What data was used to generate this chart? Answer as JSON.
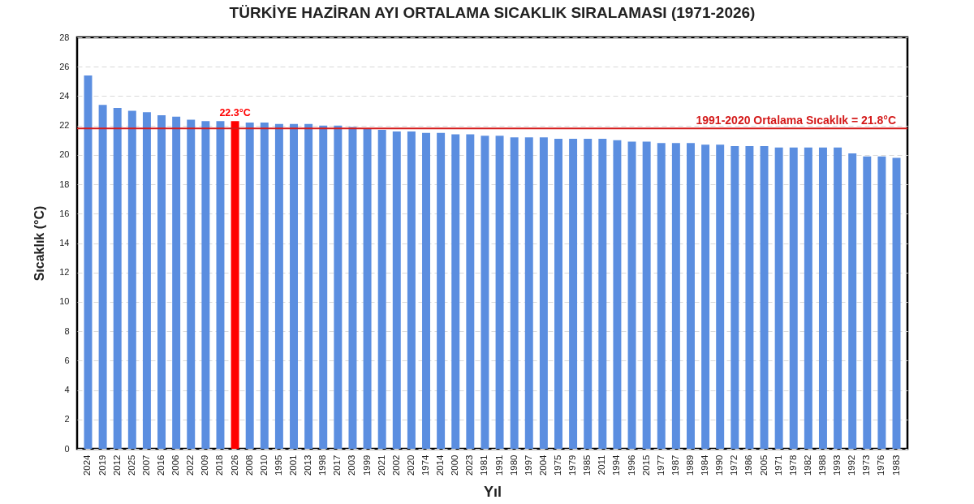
{
  "chart_data": {
    "type": "bar",
    "title": "TÜRKİYE HAZİRAN AYI ORTALAMA SICAKLIK SIRALAMASI (1971-2026)",
    "xlabel": "Yıl",
    "ylabel": "Sıcaklık (°C)",
    "categories": [
      "2024",
      "2019",
      "2012",
      "2025",
      "2007",
      "2016",
      "2006",
      "2022",
      "2009",
      "2018",
      "2026",
      "2008",
      "2010",
      "1995",
      "2001",
      "2013",
      "1998",
      "2017",
      "2003",
      "1999",
      "2021",
      "2002",
      "2020",
      "1974",
      "2014",
      "2000",
      "2023",
      "1981",
      "1991",
      "1980",
      "1997",
      "2004",
      "1975",
      "1979",
      "1985",
      "2011",
      "1994",
      "1996",
      "2015",
      "1977",
      "1987",
      "1989",
      "1984",
      "1990",
      "1972",
      "1986",
      "2005",
      "1971",
      "1978",
      "1982",
      "1988",
      "1993",
      "1992",
      "1973",
      "1976",
      "1983"
    ],
    "values": [
      25.4,
      23.4,
      23.2,
      23.0,
      22.9,
      22.7,
      22.6,
      22.4,
      22.3,
      22.3,
      22.3,
      22.2,
      22.2,
      22.1,
      22.1,
      22.1,
      22.0,
      22.0,
      21.9,
      21.8,
      21.7,
      21.6,
      21.6,
      21.5,
      21.5,
      21.4,
      21.4,
      21.3,
      21.3,
      21.2,
      21.2,
      21.2,
      21.1,
      21.1,
      21.1,
      21.1,
      21.0,
      20.9,
      20.9,
      20.8,
      20.8,
      20.8,
      20.7,
      20.7,
      20.6,
      20.6,
      20.6,
      20.5,
      20.5,
      20.5,
      20.5,
      20.5,
      20.1,
      19.9,
      19.9,
      19.8
    ],
    "colors": [
      "#5b8ee0",
      "#5b8ee0",
      "#5b8ee0",
      "#5b8ee0",
      "#5b8ee0",
      "#5b8ee0",
      "#5b8ee0",
      "#5b8ee0",
      "#5b8ee0",
      "#5b8ee0",
      "#ff0000",
      "#5b8ee0",
      "#5b8ee0",
      "#5b8ee0",
      "#5b8ee0",
      "#5b8ee0",
      "#5b8ee0",
      "#5b8ee0",
      "#5b8ee0",
      "#5b8ee0",
      "#5b8ee0",
      "#5b8ee0",
      "#5b8ee0",
      "#5b8ee0",
      "#5b8ee0",
      "#5b8ee0",
      "#5b8ee0",
      "#5b8ee0",
      "#5b8ee0",
      "#5b8ee0",
      "#5b8ee0",
      "#5b8ee0",
      "#5b8ee0",
      "#5b8ee0",
      "#5b8ee0",
      "#5b8ee0",
      "#5b8ee0",
      "#5b8ee0",
      "#5b8ee0",
      "#5b8ee0",
      "#5b8ee0",
      "#5b8ee0",
      "#5b8ee0",
      "#5b8ee0",
      "#5b8ee0",
      "#5b8ee0",
      "#5b8ee0",
      "#5b8ee0",
      "#5b8ee0",
      "#5b8ee0",
      "#5b8ee0",
      "#5b8ee0",
      "#5b8ee0",
      "#5b8ee0",
      "#5b8ee0",
      "#5b8ee0"
    ],
    "value_labels": [
      null,
      null,
      null,
      null,
      null,
      null,
      null,
      null,
      null,
      null,
      "22.3°C",
      null,
      null,
      null,
      null,
      null,
      null,
      null,
      null,
      null,
      null,
      null,
      null,
      null,
      null,
      null,
      null,
      null,
      null,
      null,
      null,
      null,
      null,
      null,
      null,
      null,
      null,
      null,
      null,
      null,
      null,
      null,
      null,
      null,
      null,
      null,
      null,
      null,
      null,
      null,
      null,
      null,
      null,
      null,
      null,
      null
    ],
    "ylim": [
      0,
      28
    ],
    "yticks": [
      0,
      2,
      4,
      6,
      8,
      10,
      12,
      14,
      16,
      18,
      20,
      22,
      24,
      26,
      28
    ],
    "grid": "y",
    "ref_lines": [
      {
        "axis": "y",
        "value": 21.8,
        "label": "1991-2020 Ortalama Sıcaklık = 21.8°C",
        "color": "#d41a1a"
      }
    ]
  }
}
